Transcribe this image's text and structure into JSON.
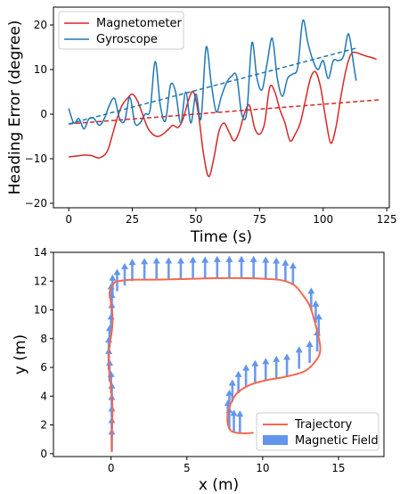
{
  "chart_data": [
    {
      "type": "line",
      "xlabel": "Time (s)",
      "ylabel": "Heading Error (degree)",
      "xlim": [
        -6,
        126
      ],
      "ylim": [
        -21,
        24
      ],
      "xticks": [
        0,
        25,
        50,
        75,
        100,
        125
      ],
      "yticks": [
        -20,
        -10,
        0,
        10,
        20
      ],
      "legend": "upper-left",
      "grid": false,
      "series": [
        {
          "name": "Magnetometer",
          "color": "#d62728",
          "style": "solid",
          "x": [
            0,
            3,
            6,
            9,
            12,
            15,
            17,
            19,
            21,
            23,
            25,
            27,
            29,
            31,
            33,
            35,
            37,
            39,
            41,
            43,
            45,
            47,
            49,
            51,
            53,
            55,
            57,
            59,
            61,
            63,
            65,
            67,
            69,
            71,
            73,
            75,
            77,
            79,
            81,
            83,
            85,
            87,
            89,
            91,
            93,
            95,
            97,
            99,
            101,
            103,
            105,
            107,
            109,
            111,
            113,
            115,
            117,
            119,
            121
          ],
          "y": [
            -9.6,
            -9.4,
            -9.2,
            -9.3,
            -9.8,
            -8.5,
            -5,
            -1,
            2,
            3.5,
            4.5,
            3,
            0,
            -3,
            -4.5,
            -5,
            -4.5,
            -3.5,
            -2.5,
            -3,
            -1,
            3,
            5,
            0,
            -9,
            -14,
            -10,
            -4,
            -2,
            -4,
            -6,
            -4,
            0,
            2,
            -3,
            -4.5,
            -2,
            6,
            5,
            1,
            -2,
            -6,
            -4.5,
            -2,
            3,
            8,
            9.5,
            6,
            -1,
            -6.5,
            -3,
            4,
            10,
            13.5,
            13.8,
            13.4,
            13,
            12.7,
            12.3
          ]
        },
        {
          "name": "Gyroscope",
          "color": "#1f77b4",
          "style": "solid",
          "x": [
            0,
            2,
            4,
            6,
            8,
            10,
            12,
            14,
            16,
            18,
            20,
            22,
            24,
            26,
            28,
            30,
            32,
            34,
            36,
            38,
            40,
            42,
            44,
            46,
            48,
            50,
            52,
            54,
            56,
            58,
            60,
            62,
            64,
            66,
            68,
            70,
            72,
            74,
            76,
            78,
            80,
            82,
            84,
            86,
            88,
            90,
            92,
            94,
            96,
            98,
            100,
            102,
            104,
            106,
            108,
            110,
            112,
            113
          ],
          "y": [
            1.3,
            -2,
            -1,
            -3.3,
            -1,
            -1,
            -2.5,
            -1,
            2,
            3.5,
            -1,
            -1.5,
            3.8,
            -2,
            -2,
            0,
            1,
            11.8,
            2,
            -1.5,
            6.5,
            5,
            -2,
            5,
            -2,
            4.5,
            -1,
            15,
            7,
            0.5,
            4,
            7,
            8.5,
            8.5,
            0,
            0.5,
            16,
            8,
            5.5,
            11.5,
            17,
            8,
            4,
            8,
            9,
            10.5,
            21,
            16,
            12,
            10,
            12,
            8,
            12,
            12,
            13,
            18,
            11,
            7.5
          ]
        },
        {
          "name": "",
          "color": "#d62728",
          "style": "dashed",
          "x": [
            0,
            122
          ],
          "y": [
            -2.2,
            3.2
          ]
        },
        {
          "name": "",
          "color": "#1f77b4",
          "style": "dashed",
          "x": [
            0,
            113
          ],
          "y": [
            -2.2,
            14.8
          ]
        }
      ]
    },
    {
      "type": "quiver",
      "xlabel": "x (m)",
      "ylabel": "y (m)",
      "xlim": [
        -3.8,
        18
      ],
      "ylim": [
        -0.2,
        14
      ],
      "xticks": [
        0,
        5,
        10,
        15
      ],
      "yticks": [
        0,
        2,
        4,
        6,
        8,
        10,
        12,
        14
      ],
      "legend": "lower-right",
      "grid": false,
      "trajectory": {
        "name": "Trajectory",
        "color": "#f4694e",
        "x": [
          0.05,
          0.05,
          0.1,
          0.0,
          -0.15,
          -0.1,
          0.05,
          0.1,
          0.0,
          -0.1,
          0.1,
          0.3,
          0.8,
          1.5,
          3,
          5,
          7,
          9,
          10.3,
          11.3,
          12.1,
          12.6,
          13.1,
          13.4,
          13.65,
          13.8,
          13.6,
          12.8,
          11.5,
          10.2,
          9.1,
          8.3,
          7.9,
          7.7,
          7.7,
          7.9,
          8.3,
          8.9,
          9.4
        ],
        "y": [
          0.1,
          1.5,
          3,
          4.6,
          6.2,
          7.5,
          8.5,
          9.5,
          10.5,
          11.2,
          11.7,
          11.95,
          12.05,
          12.1,
          12.1,
          12.15,
          12.2,
          12.2,
          12.15,
          12.05,
          11.7,
          11.1,
          10.3,
          9.3,
          8.3,
          7.3,
          6.6,
          5.75,
          5.35,
          5.1,
          4.75,
          4.2,
          3.5,
          2.8,
          2.1,
          1.6,
          1.45,
          1.42,
          1.45
        ]
      },
      "field": {
        "name": "Magnetic Field",
        "color": "#6495ed",
        "arrow_length": 1.5,
        "points": [
          [
            0.05,
            0.2
          ],
          [
            0.05,
            1.0
          ],
          [
            0.05,
            1.8
          ],
          [
            0.05,
            2.6
          ],
          [
            0.05,
            3.4
          ],
          [
            0.0,
            4.2
          ],
          [
            -0.1,
            5.0
          ],
          [
            -0.15,
            5.8
          ],
          [
            -0.15,
            6.6
          ],
          [
            -0.1,
            7.4
          ],
          [
            0.0,
            8.2
          ],
          [
            0.05,
            9.0
          ],
          [
            0.05,
            9.7
          ],
          [
            0.0,
            10.3
          ],
          [
            0.1,
            10.9
          ],
          [
            0.4,
            11.3
          ],
          [
            0.9,
            11.7
          ],
          [
            1.4,
            12.0
          ],
          [
            2.2,
            12.05
          ],
          [
            3.0,
            12.1
          ],
          [
            3.8,
            12.1
          ],
          [
            4.6,
            12.1
          ],
          [
            5.4,
            12.15
          ],
          [
            6.2,
            12.15
          ],
          [
            7.0,
            12.2
          ],
          [
            7.8,
            12.2
          ],
          [
            8.6,
            12.2
          ],
          [
            9.4,
            12.2
          ],
          [
            10.2,
            12.15
          ],
          [
            10.9,
            12.1
          ],
          [
            11.5,
            11.95
          ],
          [
            12.0,
            11.75
          ],
          [
            13.2,
            10.0
          ],
          [
            13.5,
            9.1
          ],
          [
            13.7,
            8.2
          ],
          [
            13.6,
            7.1
          ],
          [
            13.1,
            6.3
          ],
          [
            12.4,
            5.9
          ],
          [
            11.6,
            5.4
          ],
          [
            10.9,
            5.25
          ],
          [
            10.2,
            5.1
          ],
          [
            9.5,
            4.95
          ],
          [
            8.9,
            4.65
          ],
          [
            8.4,
            4.2
          ],
          [
            8.0,
            3.6
          ],
          [
            7.8,
            2.9
          ],
          [
            7.7,
            2.2
          ],
          [
            7.8,
            1.7
          ],
          [
            8.1,
            1.5
          ],
          [
            8.5,
            1.45
          ]
        ]
      }
    }
  ]
}
